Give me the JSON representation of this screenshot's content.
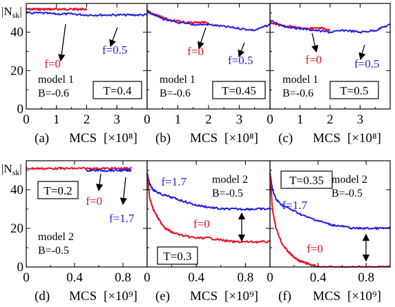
{
  "chart_data": [
    {
      "panel": "a",
      "type": "line",
      "ylabel": "|N",
      "ylabel_sub": "sk",
      "ylabel_end": "|",
      "xlim": [
        0,
        4
      ],
      "ylim": [
        0,
        55
      ],
      "xticks": [
        0,
        1,
        2,
        3
      ],
      "yticks": [
        0,
        20,
        40
      ],
      "annotation": [
        "model 1",
        "B=-0.6"
      ],
      "tbox": "T=0.4",
      "caption": "(a)",
      "xlabel": "MCS",
      "xunit": "[×10⁸]",
      "series": [
        {
          "name": "f=0",
          "color": "#e8102a",
          "x": [
            0,
            0.25,
            0.5,
            0.75,
            1.0,
            1.25,
            1.5,
            1.75,
            2.0
          ],
          "y": [
            52,
            52,
            52,
            52,
            52,
            52,
            52,
            52,
            52
          ]
        },
        {
          "name": "f=0.5",
          "color": "#1f1fe0",
          "x": [
            0,
            0.5,
            1.0,
            1.5,
            2.0,
            2.5,
            3.0,
            3.5,
            4.0
          ],
          "y": [
            50,
            50,
            49.5,
            49.5,
            49,
            49,
            49,
            49,
            49
          ]
        }
      ]
    },
    {
      "panel": "b",
      "type": "line",
      "xlim": [
        0,
        4
      ],
      "ylim": [
        0,
        55
      ],
      "xticks": [
        0,
        1,
        2,
        3
      ],
      "yticks": [
        0,
        20,
        40
      ],
      "annotation": [
        "model 1",
        "B=-0.6"
      ],
      "tbox": "T=0.45",
      "caption": "(b)",
      "xlabel": "MCS",
      "xunit": "[×10⁸]",
      "series": [
        {
          "name": "f=0",
          "color": "#e8102a",
          "x": [
            0,
            0.25,
            0.5,
            0.75,
            1.0,
            1.25,
            1.5,
            1.75,
            2.0
          ],
          "y": [
            51,
            49,
            48,
            46,
            46,
            45,
            45,
            45,
            45
          ]
        },
        {
          "name": "f=0.5",
          "color": "#1f1fe0",
          "x": [
            0,
            0.5,
            1.0,
            1.5,
            2.0,
            2.5,
            3.0,
            3.5,
            4.0
          ],
          "y": [
            51,
            47,
            45,
            44,
            44,
            43,
            42,
            41,
            44
          ]
        }
      ]
    },
    {
      "panel": "c",
      "type": "line",
      "xlim": [
        0,
        4
      ],
      "ylim": [
        0,
        55
      ],
      "xticks": [
        0,
        1,
        2,
        3
      ],
      "yticks": [
        0,
        20,
        40
      ],
      "annotation": [
        "model 1",
        "B=-0.6"
      ],
      "tbox": "T=0.5",
      "caption": "(c)",
      "xlabel": "MCS",
      "xunit": "[×10⁸]",
      "series": [
        {
          "name": "f=0",
          "color": "#e8102a",
          "x": [
            0,
            0.25,
            0.5,
            0.75,
            1.0,
            1.25,
            1.5,
            1.75,
            2.0
          ],
          "y": [
            45,
            44,
            43,
            43,
            42,
            42,
            42,
            42,
            41
          ]
        },
        {
          "name": "f=0.5",
          "color": "#1f1fe0",
          "x": [
            0,
            0.5,
            1.0,
            1.5,
            2.0,
            2.5,
            3.0,
            3.5,
            4.0
          ],
          "y": [
            46,
            43,
            42,
            41,
            40,
            41,
            40,
            41,
            44
          ]
        }
      ]
    },
    {
      "panel": "d",
      "type": "line",
      "ylabel": "|N",
      "ylabel_sub": "sk",
      "ylabel_end": "|",
      "xlim": [
        0,
        1.0
      ],
      "ylim": [
        0,
        55
      ],
      "xticks": [
        0,
        0.4,
        0.8
      ],
      "yticks": [
        0,
        20,
        40
      ],
      "annotation": [
        "model 2",
        "B=-0.5"
      ],
      "tbox": "T=0.2",
      "caption": "(d)",
      "xlabel": "MCS",
      "xunit": "[×10⁹]",
      "series": [
        {
          "name": "f=0",
          "color": "#e8102a",
          "x": [
            0,
            0.1,
            0.2,
            0.3,
            0.4,
            0.5,
            0.6,
            0.7,
            0.8,
            0.87
          ],
          "y": [
            51,
            51,
            51,
            51,
            51,
            51,
            51,
            51,
            51,
            51
          ]
        },
        {
          "name": "f=1.7",
          "color": "#1f1fe0",
          "x": [
            0.5,
            0.6,
            0.7,
            0.8,
            0.87
          ],
          "y": [
            50,
            50,
            50,
            50,
            50
          ]
        }
      ]
    },
    {
      "panel": "e",
      "type": "line",
      "xlim": [
        0,
        1.0
      ],
      "ylim": [
        0,
        55
      ],
      "xticks": [
        0,
        0.4,
        0.8
      ],
      "yticks": [
        0,
        20,
        40
      ],
      "annotation": [
        "model 2",
        "B=-0.5"
      ],
      "tbox": "T=0.3",
      "caption": "(e)",
      "xlabel": "MCS",
      "xunit": "[×10⁹]",
      "series": [
        {
          "name": "f=1.7",
          "color": "#1f1fe0",
          "x": [
            0,
            0.02,
            0.05,
            0.1,
            0.2,
            0.3,
            0.4,
            0.5,
            0.6,
            0.7,
            0.8,
            0.9,
            1.0
          ],
          "y": [
            49,
            43,
            40,
            38,
            36,
            34,
            32,
            31,
            30,
            30,
            30,
            30,
            30
          ]
        },
        {
          "name": "f=0",
          "color": "#e8102a",
          "x": [
            0,
            0.02,
            0.05,
            0.1,
            0.15,
            0.2,
            0.3,
            0.4,
            0.5,
            0.6,
            0.7,
            0.8,
            0.9,
            1.0
          ],
          "y": [
            49,
            36,
            30,
            24,
            20,
            18,
            16,
            15,
            15,
            14,
            13,
            13,
            13,
            13
          ]
        }
      ]
    },
    {
      "panel": "f",
      "type": "line",
      "xlim": [
        0,
        1.0
      ],
      "ylim": [
        0,
        55
      ],
      "xticks": [
        0,
        0.4,
        0.8
      ],
      "yticks": [
        0,
        20,
        40
      ],
      "annotation": [
        "model 2",
        "B=-0.5"
      ],
      "tbox": "T=0.35",
      "caption": "(f)",
      "xlabel": "MCS",
      "xunit": "[×10⁹]",
      "series": [
        {
          "name": "f=1.7",
          "color": "#1f1fe0",
          "x": [
            0,
            0.02,
            0.05,
            0.1,
            0.2,
            0.3,
            0.4,
            0.5,
            0.6,
            0.7,
            0.8,
            0.9,
            1.0
          ],
          "y": [
            49,
            40,
            35,
            32,
            29,
            26,
            24,
            22,
            21,
            20,
            20,
            20,
            20
          ]
        },
        {
          "name": "f=0",
          "color": "#e8102a",
          "x": [
            0,
            0.02,
            0.05,
            0.1,
            0.15,
            0.2,
            0.25,
            0.3,
            0.35,
            0.4,
            0.6,
            0.8,
            1.0
          ],
          "y": [
            49,
            30,
            20,
            12,
            8,
            5,
            3,
            2,
            1,
            0,
            0,
            0,
            0
          ]
        }
      ]
    }
  ]
}
